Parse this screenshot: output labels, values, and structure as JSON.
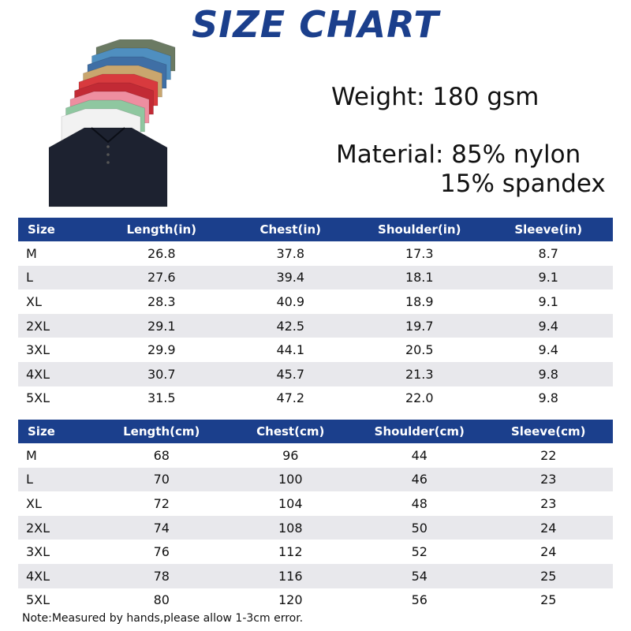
{
  "title": "SIZE CHART",
  "specs": {
    "weight": "Weight: 180 gsm",
    "material_line1": "Material: 85% nylon",
    "material_line2": "15% spandex"
  },
  "shirt_colors": [
    "#6b7a63",
    "#4f8fc0",
    "#3f6fa5",
    "#c9a66e",
    "#d83a3e",
    "#c22a35",
    "#ee8ea0",
    "#8fc7a0",
    "#f2f2f2",
    "#1d2230"
  ],
  "table_inches": {
    "headers": [
      "Size",
      "Length(in)",
      "Chest(in)",
      "Shoulder(in)",
      "Sleeve(in)"
    ],
    "rows": [
      [
        "M",
        "26.8",
        "37.8",
        "17.3",
        "8.7"
      ],
      [
        "L",
        "27.6",
        "39.4",
        "18.1",
        "9.1"
      ],
      [
        "XL",
        "28.3",
        "40.9",
        "18.9",
        "9.1"
      ],
      [
        "2XL",
        "29.1",
        "42.5",
        "19.7",
        "9.4"
      ],
      [
        "3XL",
        "29.9",
        "44.1",
        "20.5",
        "9.4"
      ],
      [
        "4XL",
        "30.7",
        "45.7",
        "21.3",
        "9.8"
      ],
      [
        "5XL",
        "31.5",
        "47.2",
        "22.0",
        "9.8"
      ]
    ]
  },
  "table_cm": {
    "headers": [
      "Size",
      "Length(cm)",
      "Chest(cm)",
      "Shoulder(cm)",
      "Sleeve(cm)"
    ],
    "rows": [
      [
        "M",
        "68",
        "96",
        "44",
        "22"
      ],
      [
        "L",
        "70",
        "100",
        "46",
        "23"
      ],
      [
        "XL",
        "72",
        "104",
        "48",
        "23"
      ],
      [
        "2XL",
        "74",
        "108",
        "50",
        "24"
      ],
      [
        "3XL",
        "76",
        "112",
        "52",
        "24"
      ],
      [
        "4XL",
        "78",
        "116",
        "54",
        "25"
      ],
      [
        "5XL",
        "80",
        "120",
        "56",
        "25"
      ]
    ]
  },
  "note": "Note:Measured by hands,please allow 1-3cm error.",
  "colors": {
    "header_bg": "#1b3f8c",
    "stripe": "#e8e8ec",
    "title": "#1b3f8c"
  }
}
